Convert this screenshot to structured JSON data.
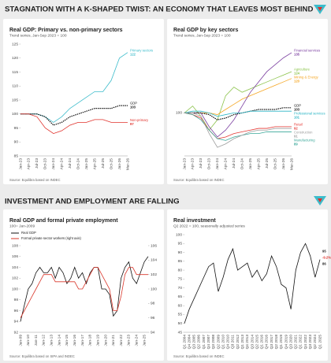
{
  "headers": [
    "STAGNATION WITH A K-SHAPED TWIST: AN ECONOMY THAT LEAVES MOST BEHIND",
    "INVESTMENT AND EMPLOYMENT ARE FALLING"
  ],
  "chart_data": [
    {
      "type": "line",
      "title": "Real GDP: Primary vs. non-primary sectors",
      "subtitle": "Trend series, Jan-Sep 2023 = 100",
      "source": "Source: Equilibra based on INDEC",
      "categories": [
        "Jan-23",
        "Apr-23",
        "Jul-23",
        "Oct-23",
        "Jan-24",
        "Apr-24",
        "Jul-24",
        "Oct-24",
        "Jan-25",
        "Apr-25",
        "Jul-25",
        "Oct-25",
        "Jan-26",
        "Mar-26"
      ],
      "ylim": [
        85,
        125
      ],
      "yticks": [
        85,
        90,
        95,
        100,
        105,
        110,
        115,
        120,
        125
      ],
      "end_labels": true,
      "series": [
        {
          "name": "Primary sectors",
          "color": "#3cbccb",
          "values": [
            100,
            100,
            100,
            99,
            97,
            99,
            102,
            104,
            106,
            108,
            108,
            112,
            120,
            122
          ]
        },
        {
          "name": "GDP",
          "color": "#111111",
          "dashed": true,
          "values": [
            100,
            100,
            100,
            99,
            96,
            97,
            99,
            100,
            101,
            102,
            102,
            102,
            103,
            103
          ]
        },
        {
          "name": "Non-primary",
          "color": "#e0302a",
          "values": [
            100,
            100,
            99,
            95,
            93,
            94,
            96,
            97,
            97,
            98,
            98,
            97,
            97,
            97
          ]
        }
      ]
    },
    {
      "type": "line",
      "title": "Real GDP by key sectors",
      "subtitle": "Trend series, Jan-Sep 2023 = 100",
      "source": "Source: Equilibra based on INDEC",
      "categories": [
        "Jan-23",
        "Apr-23",
        "Jul-23",
        "Oct-23",
        "Jan-24",
        "Apr-24",
        "Jul-24",
        "Oct-24",
        "Jan-25",
        "Apr-25",
        "Jul-25",
        "Oct-25",
        "Jan-26",
        "Mar-26"
      ],
      "ylim": [
        75,
        140
      ],
      "yticks": [
        100
      ],
      "end_labels": true,
      "series": [
        {
          "name": "Agriculture",
          "color": "#8bc34a",
          "values": [
            100,
            104,
            98,
            90,
            96,
            110,
            115,
            112,
            114,
            116,
            118,
            120,
            122,
            124
          ]
        },
        {
          "name": "Mining & Energy",
          "color": "#f5a623",
          "values": [
            100,
            100,
            100,
            100,
            99,
            102,
            105,
            108,
            110,
            112,
            114,
            116,
            118,
            120
          ]
        },
        {
          "name": "Financial services",
          "color": "#7b3fa0",
          "values": [
            100,
            100,
            100,
            92,
            86,
            90,
            96,
            104,
            112,
            118,
            124,
            128,
            132,
            135
          ]
        },
        {
          "name": "GDP",
          "color": "#111111",
          "dashed": true,
          "values": [
            100,
            100,
            100,
            99,
            96,
            97,
            99,
            100,
            101,
            102,
            102,
            102,
            103,
            103
          ]
        },
        {
          "name": "Professional services",
          "color": "#2bb5c5",
          "values": [
            100,
            101,
            101,
            100,
            98,
            99,
            100,
            100,
            101,
            101,
            101,
            101,
            101,
            101
          ]
        },
        {
          "name": "Retail",
          "color": "#e53935",
          "values": [
            100,
            99,
            97,
            90,
            85,
            86,
            88,
            89,
            90,
            91,
            91,
            92,
            92,
            92
          ]
        },
        {
          "name": "Manufacturing",
          "color": "#3aa89a",
          "values": [
            100,
            99,
            96,
            90,
            85,
            84,
            86,
            87,
            88,
            88,
            89,
            89,
            89,
            89
          ]
        },
        {
          "name": "Construction",
          "color": "#9e9e9e",
          "values": [
            100,
            100,
            98,
            88,
            80,
            82,
            85,
            87,
            89,
            90,
            90,
            91,
            91,
            91
          ]
        }
      ]
    },
    {
      "type": "line",
      "title": "Real GDP and formal private employment",
      "subtitle": "100= Jan-2009",
      "source": "Source: Equilibra based on SIPA and INDEC",
      "legend": "upper left",
      "categories": [
        "Jan-09",
        null,
        "Jan-10",
        null,
        "Jan-11",
        null,
        "Jan-12",
        null,
        "Jan-13",
        null,
        "Jan-14",
        null,
        "Jan-15",
        null,
        "Jan-16",
        null,
        "Jan-17",
        null,
        "Jan-18",
        null,
        "Jan-19",
        null,
        "Jan-20",
        null,
        "Jan-21",
        null,
        "Jan-22",
        null,
        "Jan-23",
        null,
        "Jan-24",
        null,
        "Jan-25",
        null
      ],
      "ylim": [
        92,
        108
      ],
      "yticks": [
        92,
        94,
        96,
        98,
        100,
        102,
        104,
        106,
        108
      ],
      "y2lim": [
        94,
        106
      ],
      "y2ticks": [
        94,
        96,
        98,
        100,
        102,
        104,
        106
      ],
      "series": [
        {
          "name": "Real GDP",
          "color": "#111111",
          "values": [
            94,
            97,
            100,
            101,
            103,
            104,
            103,
            103,
            104,
            102,
            104,
            103,
            101,
            102,
            104,
            102,
            103,
            101,
            103,
            104,
            104,
            100,
            100,
            99,
            95,
            96,
            102,
            104,
            105,
            102,
            101,
            103,
            105,
            106
          ]
        },
        {
          "name": "Formal private sector workers (right axis)",
          "color": "#d9372b",
          "axis": "y2",
          "values": [
            96,
            97,
            98,
            99,
            100,
            101,
            102,
            102,
            102,
            101,
            101,
            101,
            101,
            101,
            101,
            100,
            100,
            101,
            102,
            103,
            103,
            102,
            101,
            100,
            97,
            97,
            99,
            102,
            103,
            103,
            102,
            102,
            102,
            102
          ]
        }
      ]
    },
    {
      "type": "line",
      "title": "Real investment",
      "subtitle": "Q2 2022 = 100, seasonally adjusted series",
      "source": "Source: Equilibra based on INDEC",
      "categories": [
        "Q1 2004",
        "Q4 2004",
        "Q3 2005",
        "Q2 2006",
        "Q1 2007",
        "Q4 2007",
        "Q3 2008",
        "Q2 2009",
        "Q1 2010",
        "Q4 2010",
        "Q3 2011",
        "Q2 2012",
        "Q1 2013",
        "Q4 2013",
        "Q3 2014",
        "Q2 2015",
        "Q1 2016",
        "Q4 2016",
        "Q3 2017",
        "Q2 2018",
        "Q1 2019",
        "Q4 2019",
        "Q3 2020",
        "Q2 2021",
        "Q1 2022",
        "Q4 2022",
        "Q3 2023",
        "Q2 2024",
        "Q1 2025"
      ],
      "ylim": [
        45,
        100
      ],
      "yticks": [
        45,
        50,
        55,
        60,
        65,
        70,
        75,
        80,
        85,
        90,
        95,
        100
      ],
      "annotations": [
        "95",
        "-9.2%",
        "86"
      ],
      "series": [
        {
          "name": "Real investment",
          "color": "#111111",
          "values": [
            50,
            58,
            64,
            70,
            76,
            82,
            84,
            68,
            76,
            86,
            92,
            80,
            82,
            84,
            76,
            80,
            74,
            78,
            88,
            82,
            72,
            70,
            58,
            80,
            90,
            95,
            88,
            76,
            86
          ]
        }
      ]
    }
  ]
}
